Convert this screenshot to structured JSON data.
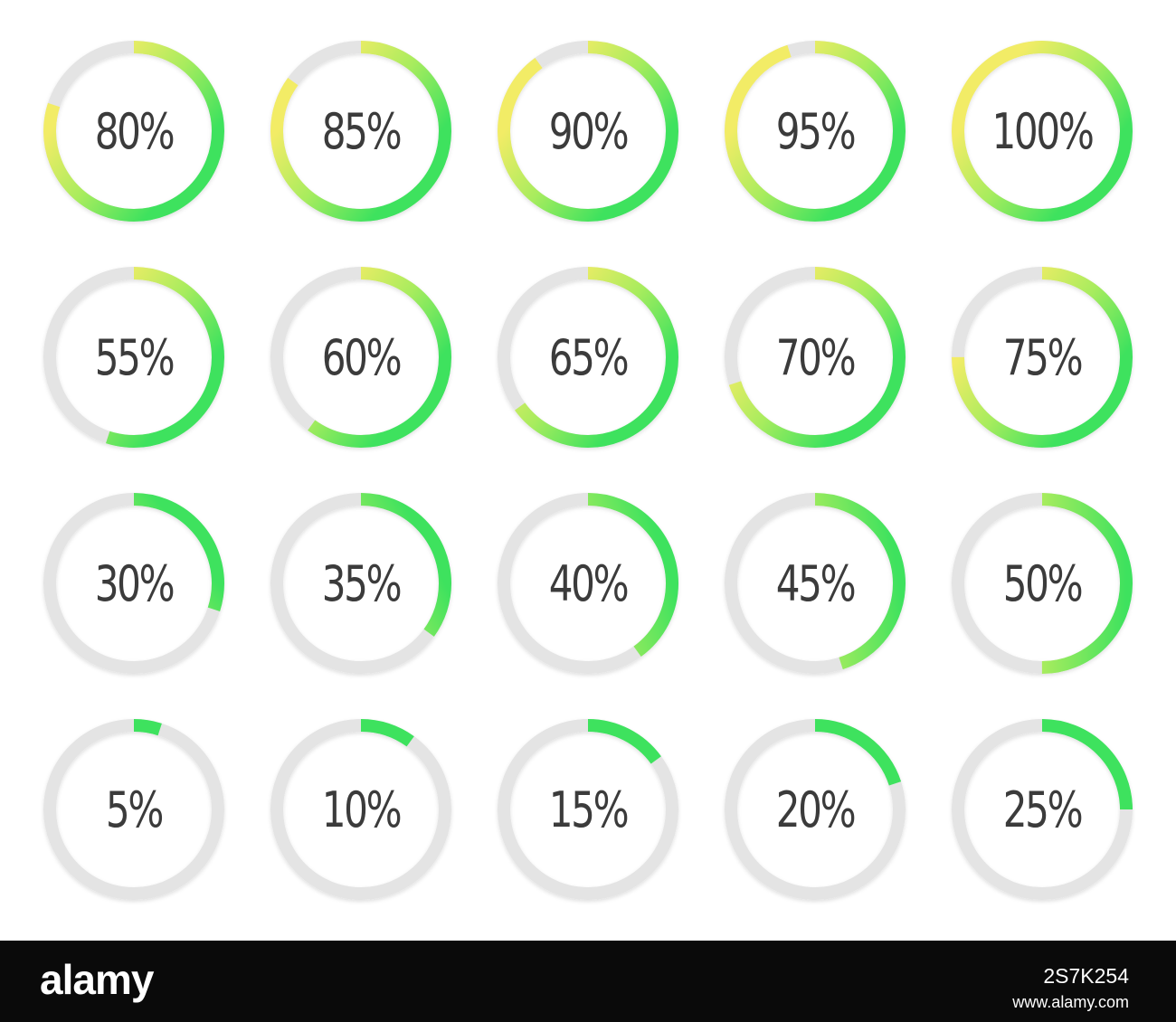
{
  "colors": {
    "track": "#e4e4e4",
    "gradient_start": "#f2ec66",
    "gradient_mid": "#a8ec5e",
    "gradient_end": "#3ee25e",
    "label": "#3b3b3b",
    "footer_bg": "#0a0a0a"
  },
  "rows": [
    {
      "items": [
        {
          "value": 0.8,
          "label": "80%"
        },
        {
          "value": 0.85,
          "label": "85%"
        },
        {
          "value": 0.9,
          "label": "90%"
        },
        {
          "value": 0.95,
          "label": "95%"
        },
        {
          "value": 1.0,
          "label": "100%"
        }
      ]
    },
    {
      "items": [
        {
          "value": 0.55,
          "label": "55%"
        },
        {
          "value": 0.6,
          "label": "60%"
        },
        {
          "value": 0.65,
          "label": "65%"
        },
        {
          "value": 0.7,
          "label": "70%"
        },
        {
          "value": 0.75,
          "label": "75%"
        }
      ]
    },
    {
      "items": [
        {
          "value": 0.3,
          "label": "30%"
        },
        {
          "value": 0.35,
          "label": "35%"
        },
        {
          "value": 0.4,
          "label": "40%"
        },
        {
          "value": 0.45,
          "label": "45%"
        },
        {
          "value": 0.5,
          "label": "50%"
        }
      ]
    },
    {
      "items": [
        {
          "value": 0.05,
          "label": "5%"
        },
        {
          "value": 0.1,
          "label": "10%"
        },
        {
          "value": 0.15,
          "label": "15%"
        },
        {
          "value": 0.2,
          "label": "20%"
        },
        {
          "value": 0.25,
          "label": "25%"
        }
      ]
    }
  ],
  "footer": {
    "logo": "alamy",
    "image_id": "2S7K254",
    "url": "www.alamy.com"
  }
}
